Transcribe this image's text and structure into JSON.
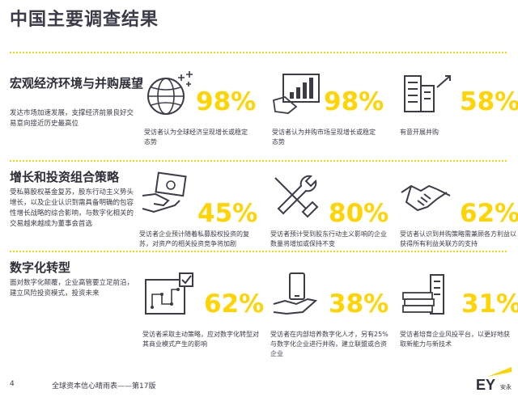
{
  "page": {
    "title": "中国主要调查结果",
    "page_number": "4",
    "footer": "全球资本信心晴雨表——第17版",
    "logo_text": "EY",
    "logo_suffix": "安永"
  },
  "sections": [
    {
      "title": "宏观经济环境与并购展望",
      "description": "发达市场加速发展，支撑经济前景良好交易意向接近历史最高位",
      "stats": [
        {
          "icon": "globe-icon",
          "value": "98%",
          "desc": "受访者认为全球经济呈现增长或稳定态势"
        },
        {
          "icon": "growth-chart-icon",
          "value": "98%",
          "desc": "受访者认为并购市场呈现增长或稳定态势"
        },
        {
          "icon": "buildings-icon",
          "value": "58%",
          "desc": "有意开展并购"
        }
      ]
    },
    {
      "title": "增长和投资组合策略",
      "description": "受私募股权基金复苏，股东行动主义势头增长，以及企业认识到需具备明确的包容性增长战略的综合影响，与数字化相关的交易越来越成为董事会首选",
      "stats": [
        {
          "icon": "money-hand-icon",
          "value": "45%",
          "desc": "受访者企业预计随着私募股权投资的复苏，对资产的相关投资竞争将加剧"
        },
        {
          "icon": "tools-icon",
          "value": "80%",
          "desc": "受访者预计受到股东行动主义影响的企业数量将增加或保持不变"
        },
        {
          "icon": "handshake-icon",
          "value": "62%",
          "desc": "受访者认识到并购策略需兼顾各方利益以获得所有利益关联方的支持"
        }
      ]
    },
    {
      "title": "数字化转型",
      "description": "面对数字化颠覆，企业高管要立足前沿，建立风险投资模式，投资未来",
      "stats": [
        {
          "icon": "circuit-check-icon",
          "value": "62%",
          "desc": "受访者采取主动策略，应对数字化转型对其商业模式产生的影响"
        },
        {
          "icon": "hand-phone-icon",
          "value": "38%",
          "desc": "受访者在内部培养数字化人才，另有25%与数字化企业进行并购，建立联盟或合资企业"
        },
        {
          "icon": "money-stack-icon",
          "value": "31%",
          "desc": "受访者培育企业风投平台，以更好地获取新能力与新技术"
        }
      ]
    }
  ],
  "colors": {
    "accent": "#ffd400",
    "text": "#2e2e38"
  }
}
